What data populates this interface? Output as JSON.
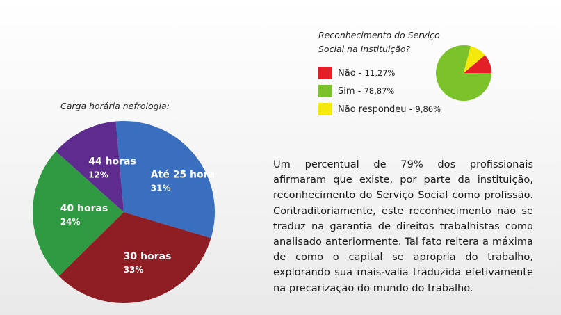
{
  "chart_data": [
    {
      "type": "pie",
      "title": "Carga horária nefrologia:",
      "slices": [
        {
          "label": "Até 25 horas",
          "value": 31,
          "value_label": "31%",
          "color": "#3a6fbf"
        },
        {
          "label": "30 horas",
          "value": 33,
          "value_label": "33%",
          "color": "#8e1d24"
        },
        {
          "label": "40 horas",
          "value": 24,
          "value_label": "24%",
          "color": "#2f9a42"
        },
        {
          "label": "44 horas",
          "value": 12,
          "value_label": "12%",
          "color": "#5e2b8f"
        }
      ]
    },
    {
      "type": "pie",
      "title": "Reconhecimento do Serviço Social na Instituição?",
      "slices": [
        {
          "label": "Não",
          "value": 11.27,
          "value_label": "11,27%",
          "color": "#e21e26"
        },
        {
          "label": "Sim",
          "value": 78.87,
          "value_label": "78,87%",
          "color": "#7cc22a"
        },
        {
          "label": "Não respondeu",
          "value": 9.86,
          "value_label": "9,86%",
          "color": "#f5e90c"
        }
      ],
      "legend": "left"
    }
  ],
  "big_title": "Carga horária nefrologia:",
  "small_title_line1": "Reconhecimento do Serviço",
  "small_title_line2": "Social na Instituição?",
  "legend": [
    {
      "label": "Não - ",
      "pct": "11,27%",
      "color": "#e21e26"
    },
    {
      "label": "Sim - ",
      "pct": "78,87%",
      "color": "#7cc22a"
    },
    {
      "label": "Não respondeu - ",
      "pct": "9,86%",
      "color": "#f5e90c"
    }
  ],
  "paragraph": "Um percentual de 79% dos profissionais afirmaram que existe, por parte da instituição, reconhecimento do Serviço Social como profissão. Contraditoriamente, este reconhecimento não se traduz na garantia de direitos trabalhistas como analisado anteriormente. Tal fato reitera a máxima de como o capital se apropria do trabalho, explorando sua mais-valia traduzida efetivamente na precarização do mundo do trabalho."
}
